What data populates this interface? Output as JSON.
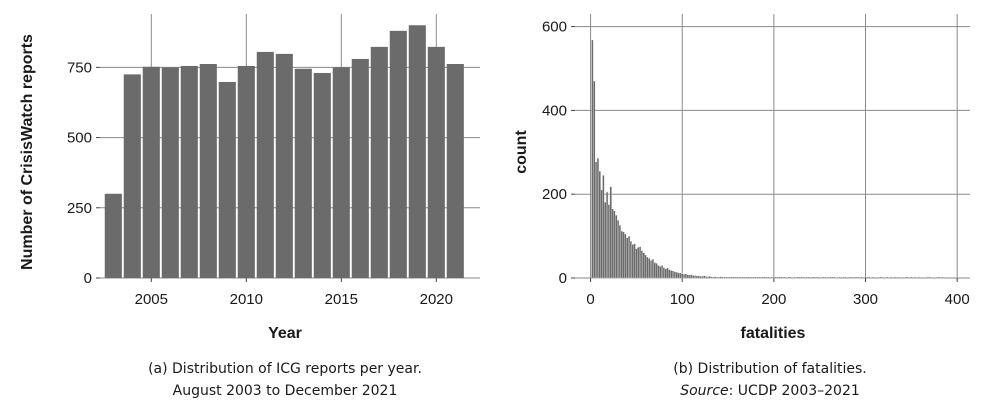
{
  "chart_data": [
    {
      "type": "bar",
      "xlabel": "Year",
      "ylabel": "Number of CrisisWatch reports",
      "x": [
        2003,
        2004,
        2005,
        2006,
        2007,
        2008,
        2009,
        2010,
        2011,
        2012,
        2013,
        2014,
        2015,
        2016,
        2017,
        2018,
        2019,
        2020,
        2021
      ],
      "values": [
        300,
        725,
        752,
        750,
        755,
        762,
        698,
        755,
        805,
        798,
        745,
        730,
        750,
        780,
        823,
        880,
        900,
        823,
        762
      ],
      "xticks": [
        "2005",
        "2010",
        "2015",
        "2020"
      ],
      "yticks": [
        "0",
        "250",
        "500",
        "750"
      ],
      "xlim": [
        2002.3,
        2022.3
      ],
      "ylim": [
        0,
        940
      ],
      "grid": true,
      "caption": [
        "(a) Distribution of ICG reports per year.",
        "August 2003 to December 2021"
      ]
    },
    {
      "type": "bar",
      "subtype": "histogram",
      "xlabel": "fatalities",
      "ylabel": "count",
      "bin_width": 2,
      "x_start": 1,
      "values": [
        568,
        470,
        277,
        286,
        255,
        210,
        245,
        181,
        205,
        175,
        218,
        165,
        160,
        150,
        138,
        126,
        112,
        110,
        105,
        96,
        100,
        88,
        80,
        82,
        70,
        73,
        75,
        65,
        60,
        55,
        50,
        47,
        42,
        45,
        37,
        35,
        30,
        28,
        30,
        25,
        22,
        24,
        20,
        18,
        17,
        15,
        14,
        12,
        12,
        10,
        9,
        10,
        8,
        7,
        8,
        6,
        6,
        5,
        5,
        4,
        4,
        5,
        4,
        3,
        4,
        3,
        2,
        3,
        2,
        2,
        3,
        2,
        2,
        1,
        2,
        2,
        1,
        1,
        2,
        1,
        2,
        1,
        1,
        1,
        2,
        1,
        1,
        1,
        1,
        1,
        2,
        1,
        1,
        1,
        1,
        1,
        1,
        0,
        1,
        1,
        1,
        1,
        1,
        1,
        1,
        1,
        0,
        1,
        1,
        0,
        1,
        0,
        1,
        1,
        1,
        1,
        0,
        1,
        1,
        0,
        1,
        1,
        1,
        1,
        0,
        0,
        1,
        1,
        0,
        1,
        1,
        1,
        1,
        0,
        0,
        1,
        0,
        1,
        1,
        0,
        1,
        1,
        0,
        1,
        1,
        1,
        0,
        1,
        0,
        0,
        1,
        1,
        0,
        1,
        0,
        0,
        0,
        1,
        1,
        0,
        0,
        1,
        0,
        1,
        0,
        1,
        0,
        1,
        0,
        0,
        0,
        1,
        1,
        0,
        1,
        0,
        1,
        0,
        1,
        0,
        0,
        0,
        0,
        1,
        1,
        0,
        0,
        0,
        1,
        1,
        0,
        1
      ],
      "xticks": [
        "0",
        "100",
        "200",
        "300",
        "400"
      ],
      "yticks": [
        "0",
        "200",
        "400",
        "600"
      ],
      "xlim": [
        -17,
        414
      ],
      "ylim": [
        0,
        630
      ],
      "grid": true,
      "caption_line1": "(b) Distribution of fatalities.",
      "caption_source_label": "Source",
      "caption_source_rest": ": UCDP 2003–2021"
    }
  ]
}
